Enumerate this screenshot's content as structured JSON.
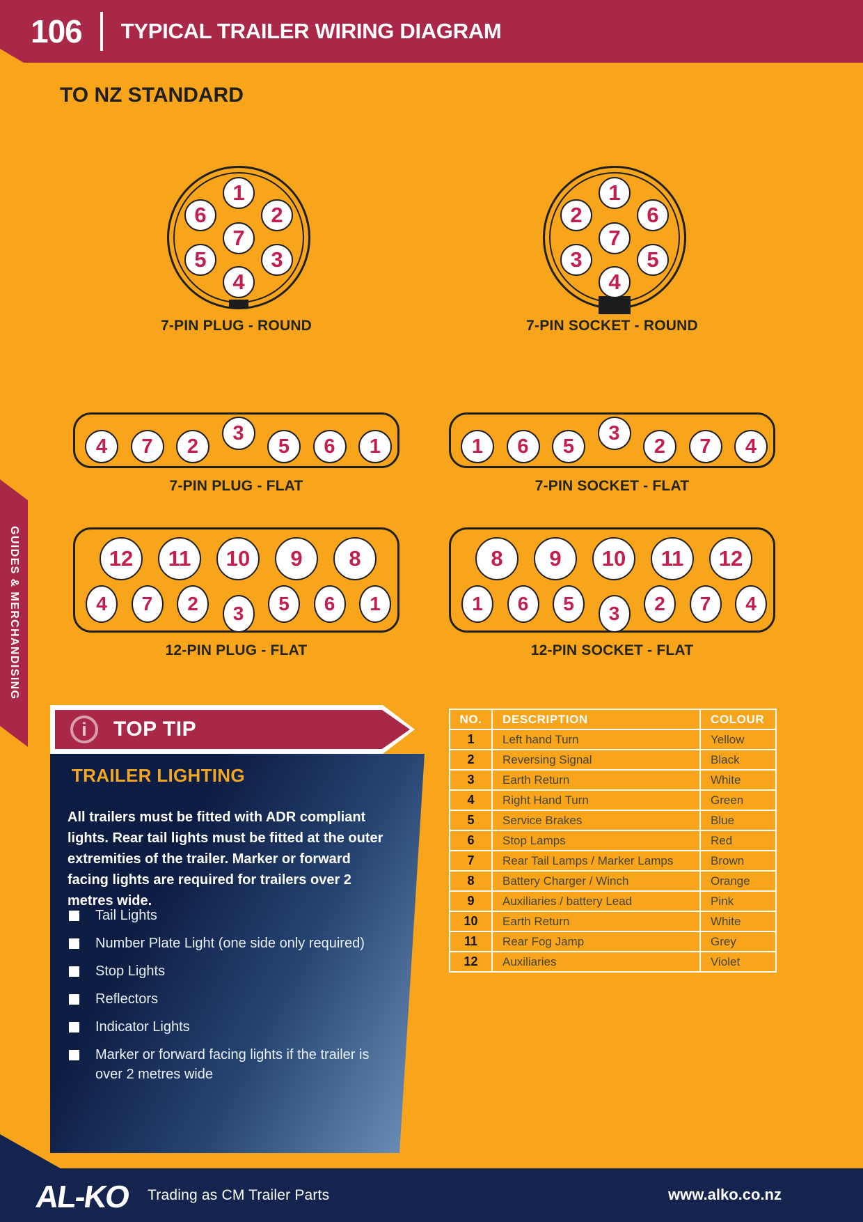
{
  "page": {
    "number": "106",
    "title": "TYPICAL TRAILER WIRING DIAGRAM",
    "standard_heading": "TO NZ STANDARD"
  },
  "sidebar": {
    "label": "GUIDES & MERCHANDISING"
  },
  "colors": {
    "background_orange": "#F8A51C",
    "crimson": "#A92847",
    "navy": "#15244F",
    "pin_number_red": "#C1204E",
    "panel_gold": "#F3A622"
  },
  "connectors": {
    "round_plug": {
      "label": "7-PIN PLUG - ROUND",
      "pins": [
        {
          "n": "1",
          "slot": "t"
        },
        {
          "n": "2",
          "slot": "tr"
        },
        {
          "n": "3",
          "slot": "br"
        },
        {
          "n": "4",
          "slot": "b"
        },
        {
          "n": "5",
          "slot": "bl"
        },
        {
          "n": "6",
          "slot": "tl"
        },
        {
          "n": "7",
          "slot": "c"
        }
      ]
    },
    "round_socket": {
      "label": "7-PIN SOCKET - ROUND",
      "pins": [
        {
          "n": "1",
          "slot": "t"
        },
        {
          "n": "2",
          "slot": "tl"
        },
        {
          "n": "3",
          "slot": "bl"
        },
        {
          "n": "4",
          "slot": "b"
        },
        {
          "n": "5",
          "slot": "br"
        },
        {
          "n": "6",
          "slot": "tr"
        },
        {
          "n": "7",
          "slot": "c"
        }
      ]
    },
    "flat7_plug": {
      "label": "7-PIN PLUG - FLAT",
      "pins": [
        {
          "n": "4"
        },
        {
          "n": "7"
        },
        {
          "n": "2"
        },
        {
          "n": "3",
          "raised": true
        },
        {
          "n": "5"
        },
        {
          "n": "6"
        },
        {
          "n": "1"
        }
      ]
    },
    "flat7_socket": {
      "label": "7-PIN SOCKET - FLAT",
      "pins": [
        {
          "n": "1"
        },
        {
          "n": "6"
        },
        {
          "n": "5"
        },
        {
          "n": "3",
          "raised": true
        },
        {
          "n": "2"
        },
        {
          "n": "7"
        },
        {
          "n": "4"
        }
      ]
    },
    "flat12_plug": {
      "label": "12-PIN PLUG - FLAT",
      "top_row": [
        "12",
        "11",
        "10",
        "9",
        "8"
      ],
      "bottom_row": [
        {
          "n": "4"
        },
        {
          "n": "7"
        },
        {
          "n": "2"
        },
        {
          "n": "3",
          "lowered": true
        },
        {
          "n": "5"
        },
        {
          "n": "6"
        },
        {
          "n": "1"
        }
      ]
    },
    "flat12_socket": {
      "label": "12-PIN SOCKET - FLAT",
      "top_row": [
        "8",
        "9",
        "10",
        "11",
        "12"
      ],
      "bottom_row": [
        {
          "n": "1"
        },
        {
          "n": "6"
        },
        {
          "n": "5"
        },
        {
          "n": "3",
          "lowered": true
        },
        {
          "n": "2"
        },
        {
          "n": "7"
        },
        {
          "n": "4"
        }
      ]
    }
  },
  "top_tip": {
    "label": "TOP TIP"
  },
  "trailer_lighting": {
    "heading": "TRAILER LIGHTING",
    "paragraph": "All trailers must be fitted with ADR compliant lights. Rear tail lights must be fitted at the outer extremities of the trailer. Marker or forward facing lights are required for trailers over 2 metres wide.",
    "bullets": [
      "Tail Lights",
      "Number Plate Light (one side only required)",
      "Stop Lights",
      "Reflectors",
      "Indicator Lights",
      "Marker or forward facing lights if the trailer is over 2 metres wide"
    ]
  },
  "wiring_table": {
    "headers": [
      "NO.",
      "DESCRIPTION",
      "COLOUR"
    ],
    "rows": [
      [
        "1",
        "Left hand Turn",
        "Yellow"
      ],
      [
        "2",
        "Reversing Signal",
        "Black"
      ],
      [
        "3",
        "Earth Return",
        "White"
      ],
      [
        "4",
        "Right Hand Turn",
        "Green"
      ],
      [
        "5",
        "Service Brakes",
        "Blue"
      ],
      [
        "6",
        "Stop Lamps",
        "Red"
      ],
      [
        "7",
        "Rear Tail Lamps  / Marker Lamps",
        "Brown"
      ],
      [
        "8",
        "Battery Charger / Winch",
        "Orange"
      ],
      [
        "9",
        "Auxiliaries / battery Lead",
        "Pink"
      ],
      [
        "10",
        "Earth Return",
        "White"
      ],
      [
        "11",
        "Rear Fog Jamp",
        "Grey"
      ],
      [
        "12",
        "Auxiliaries",
        "Violet"
      ]
    ]
  },
  "footer": {
    "logo": "AL-KO",
    "tagline": "Trading as CM Trailer Parts",
    "website": "www.alko.co.nz"
  }
}
